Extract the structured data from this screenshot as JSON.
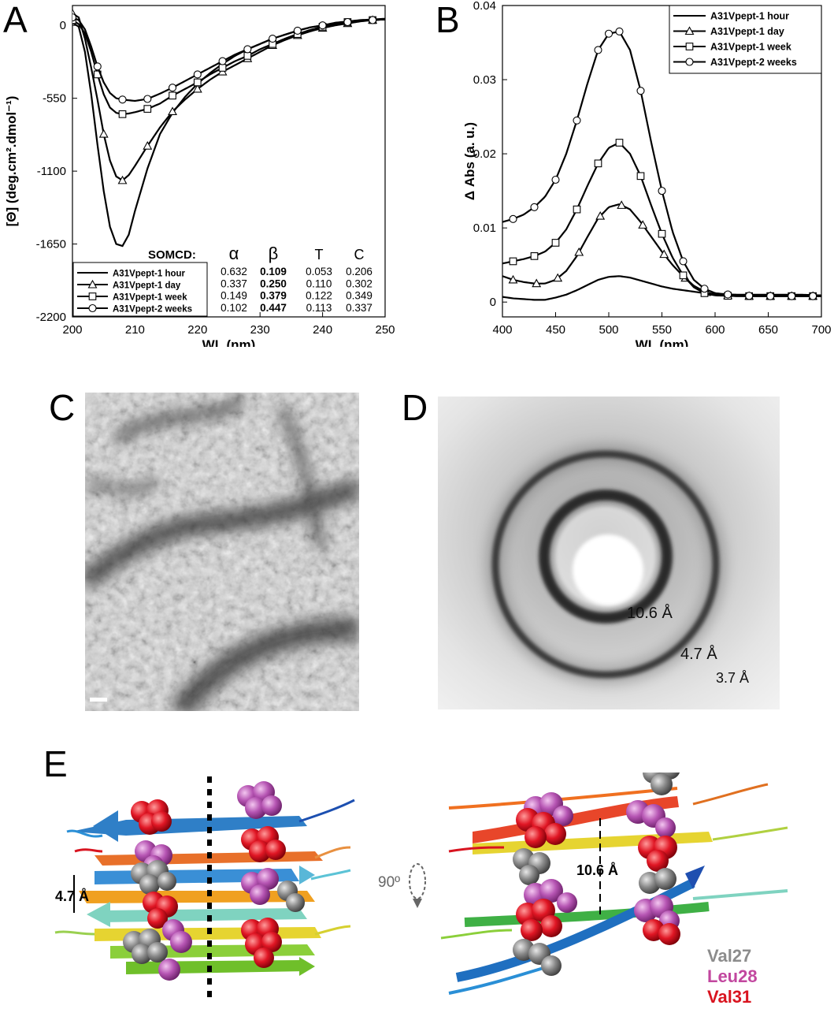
{
  "panel_labels": {
    "A": "A",
    "B": "B",
    "C": "C",
    "D": "D",
    "E": "E"
  },
  "chart_data": [
    {
      "type": "line",
      "panel": "A",
      "xlabel": "WL (nm)",
      "ylabel": "[Θ]  (deg.cm².dmol⁻¹)",
      "xlim": [
        200,
        250
      ],
      "ylim": [
        -2200,
        150
      ],
      "xticks": [
        200,
        210,
        220,
        230,
        240,
        250
      ],
      "yticks": [
        0,
        -550,
        -1100,
        -1650,
        -2200
      ],
      "legend_position": "bottom-left",
      "series": [
        {
          "name": "A31Vpept-1 hour",
          "marker": "none",
          "x": [
            200,
            201,
            202,
            203,
            204,
            205,
            206,
            207,
            208,
            209,
            210,
            212,
            214,
            216,
            218,
            220,
            222,
            224,
            226,
            228,
            230,
            232,
            234,
            236,
            238,
            240,
            242,
            244,
            246,
            248,
            250
          ],
          "y": [
            20,
            -10,
            -200,
            -520,
            -900,
            -1250,
            -1520,
            -1650,
            -1665,
            -1580,
            -1400,
            -1080,
            -820,
            -660,
            -540,
            -440,
            -360,
            -290,
            -230,
            -180,
            -140,
            -100,
            -70,
            -40,
            -15,
            0,
            20,
            30,
            40,
            45,
            50
          ]
        },
        {
          "name": "A31Vpept-1 day",
          "marker": "triangle",
          "x": [
            200,
            201,
            202,
            203,
            204,
            205,
            206,
            207,
            208,
            209,
            210,
            212,
            214,
            216,
            218,
            220,
            222,
            224,
            226,
            228,
            230,
            232,
            234,
            236,
            238,
            240,
            242,
            244,
            246,
            248,
            250
          ],
          "y": [
            90,
            60,
            -100,
            -320,
            -560,
            -820,
            -1020,
            -1140,
            -1170,
            -1130,
            -1060,
            -910,
            -770,
            -650,
            -560,
            -480,
            -410,
            -350,
            -300,
            -250,
            -200,
            -150,
            -110,
            -75,
            -45,
            -20,
            0,
            15,
            30,
            40,
            45
          ],
          "marker_x": [
            200,
            205,
            208,
            212,
            216,
            220,
            224,
            228,
            232,
            236,
            240,
            244,
            248
          ]
        },
        {
          "name": "A31Vpept-1 week",
          "marker": "square",
          "x": [
            200,
            201,
            202,
            203,
            204,
            205,
            206,
            207,
            208,
            209,
            210,
            212,
            214,
            216,
            218,
            220,
            222,
            224,
            226,
            228,
            230,
            232,
            234,
            236,
            238,
            240,
            242,
            244,
            246,
            248,
            250
          ],
          "y": [
            40,
            10,
            -60,
            -200,
            -370,
            -520,
            -620,
            -660,
            -670,
            -665,
            -655,
            -630,
            -590,
            -530,
            -480,
            -430,
            -370,
            -320,
            -270,
            -230,
            -180,
            -140,
            -100,
            -65,
            -35,
            -10,
            10,
            25,
            35,
            40,
            45
          ],
          "marker_x": [
            200,
            204,
            208,
            212,
            216,
            220,
            224,
            228,
            232,
            236,
            240,
            244,
            248
          ]
        },
        {
          "name": "A31Vpept-2 weeks",
          "marker": "circle",
          "x": [
            200,
            201,
            202,
            203,
            204,
            205,
            206,
            207,
            208,
            209,
            210,
            212,
            214,
            216,
            218,
            220,
            222,
            224,
            226,
            228,
            230,
            232,
            234,
            236,
            238,
            240,
            242,
            244,
            246,
            248,
            250
          ],
          "y": [
            60,
            40,
            -30,
            -160,
            -310,
            -430,
            -510,
            -550,
            -560,
            -565,
            -570,
            -555,
            -515,
            -470,
            -420,
            -370,
            -320,
            -270,
            -220,
            -180,
            -140,
            -100,
            -70,
            -40,
            -15,
            0,
            15,
            25,
            35,
            40,
            45
          ],
          "marker_x": [
            200,
            204,
            208,
            212,
            216,
            220,
            224,
            228,
            232,
            236,
            240,
            244,
            248
          ]
        }
      ],
      "somcd_table": {
        "title": "SOMCD:",
        "columns": [
          "α",
          "β",
          "T",
          "C"
        ],
        "rows": [
          [
            "0.632",
            "0.109",
            "0.053",
            "0.206"
          ],
          [
            "0.337",
            "0.250",
            "0.110",
            "0.302"
          ],
          [
            "0.149",
            "0.379",
            "0.122",
            "0.349"
          ],
          [
            "0.102",
            "0.447",
            "0.113",
            "0.337"
          ]
        ]
      }
    },
    {
      "type": "line",
      "panel": "B",
      "xlabel": "WL (nm)",
      "ylabel": "Δ Abs (a. u.)",
      "xlim": [
        400,
        700
      ],
      "ylim": [
        -0.002,
        0.04
      ],
      "xticks": [
        400,
        450,
        500,
        550,
        600,
        650,
        700
      ],
      "yticks": [
        0,
        0.01,
        0.02,
        0.03,
        0.04
      ],
      "ytick_labels": [
        "0",
        "0.01",
        "0.02",
        "0.03",
        "0.04"
      ],
      "legend_position": "top-right",
      "series": [
        {
          "name": "A31Vpept-1 hour",
          "marker": "none",
          "x": [
            400,
            410,
            420,
            430,
            440,
            450,
            460,
            470,
            480,
            490,
            500,
            510,
            520,
            530,
            540,
            550,
            560,
            570,
            580,
            590,
            600,
            620,
            640,
            660,
            680,
            700
          ],
          "y": [
            0.0007,
            0.0005,
            0.0004,
            0.0003,
            0.0003,
            0.0006,
            0.001,
            0.0016,
            0.0023,
            0.003,
            0.0034,
            0.0035,
            0.0033,
            0.0029,
            0.0025,
            0.0021,
            0.0018,
            0.0016,
            0.0014,
            0.0012,
            0.0011,
            0.001,
            0.001,
            0.001,
            0.001,
            0.0009
          ]
        },
        {
          "name": "A31Vpept-1 day",
          "marker": "triangle",
          "x": [
            400,
            410,
            420,
            430,
            440,
            450,
            460,
            470,
            480,
            490,
            500,
            510,
            520,
            530,
            540,
            550,
            560,
            570,
            580,
            590,
            600,
            620,
            640,
            660,
            680,
            700
          ],
          "y": [
            0.0035,
            0.003,
            0.0027,
            0.0025,
            0.0025,
            0.003,
            0.0042,
            0.0062,
            0.0088,
            0.0113,
            0.0128,
            0.0132,
            0.0125,
            0.0108,
            0.0088,
            0.0068,
            0.005,
            0.0035,
            0.0022,
            0.0014,
            0.001,
            0.0008,
            0.0008,
            0.0008,
            0.0008,
            0.0008
          ],
          "marker_x": [
            410,
            432,
            452,
            472,
            492,
            512,
            532,
            552,
            572,
            592,
            612,
            632,
            652,
            672,
            692
          ]
        },
        {
          "name": "A31Vpept-1 week",
          "marker": "square",
          "x": [
            400,
            410,
            420,
            430,
            440,
            450,
            460,
            470,
            480,
            490,
            500,
            510,
            520,
            530,
            540,
            550,
            560,
            570,
            580,
            590,
            600,
            620,
            640,
            660,
            680,
            700
          ],
          "y": [
            0.0052,
            0.0055,
            0.0058,
            0.0062,
            0.0068,
            0.008,
            0.0098,
            0.0125,
            0.0157,
            0.0187,
            0.0208,
            0.0215,
            0.02,
            0.017,
            0.013,
            0.0092,
            0.006,
            0.0036,
            0.002,
            0.0012,
            0.0009,
            0.0008,
            0.0008,
            0.0008,
            0.0008,
            0.0008
          ],
          "marker_x": [
            410,
            430,
            450,
            470,
            490,
            510,
            530,
            550,
            570,
            590,
            612,
            632,
            652,
            672,
            692
          ]
        },
        {
          "name": "A31Vpept-2 weeks",
          "marker": "circle",
          "x": [
            400,
            410,
            420,
            430,
            440,
            450,
            460,
            470,
            480,
            490,
            500,
            510,
            520,
            530,
            540,
            550,
            560,
            570,
            580,
            590,
            600,
            620,
            640,
            660,
            680,
            700
          ],
          "y": [
            0.0108,
            0.0112,
            0.0118,
            0.0128,
            0.0142,
            0.0165,
            0.02,
            0.0245,
            0.0295,
            0.034,
            0.0362,
            0.0365,
            0.034,
            0.0285,
            0.0215,
            0.015,
            0.0095,
            0.0055,
            0.003,
            0.0018,
            0.0012,
            0.0009,
            0.0008,
            0.0008,
            0.0008,
            0.0008
          ],
          "marker_x": [
            410,
            430,
            450,
            470,
            490,
            500,
            510,
            530,
            550,
            570,
            590,
            612,
            632,
            652,
            672,
            692
          ]
        }
      ]
    }
  ],
  "panel_d": {
    "ring_labels": [
      "10.6 Å",
      "4.7 Å",
      "3.7 Å"
    ]
  },
  "panel_e": {
    "spacing_left": "4.7 Å",
    "rotation": "90º",
    "spacing_right": "10.6 Å",
    "legend": [
      {
        "name": "Val27",
        "color": "#8c8c8c"
      },
      {
        "name": "Leu28",
        "color": "#c2479f"
      },
      {
        "name": "Val31",
        "color": "#d9141f"
      }
    ]
  },
  "colors": {
    "val27": "#7a7a7a",
    "leu28": "#b04fb0",
    "val31": "#d81420"
  }
}
